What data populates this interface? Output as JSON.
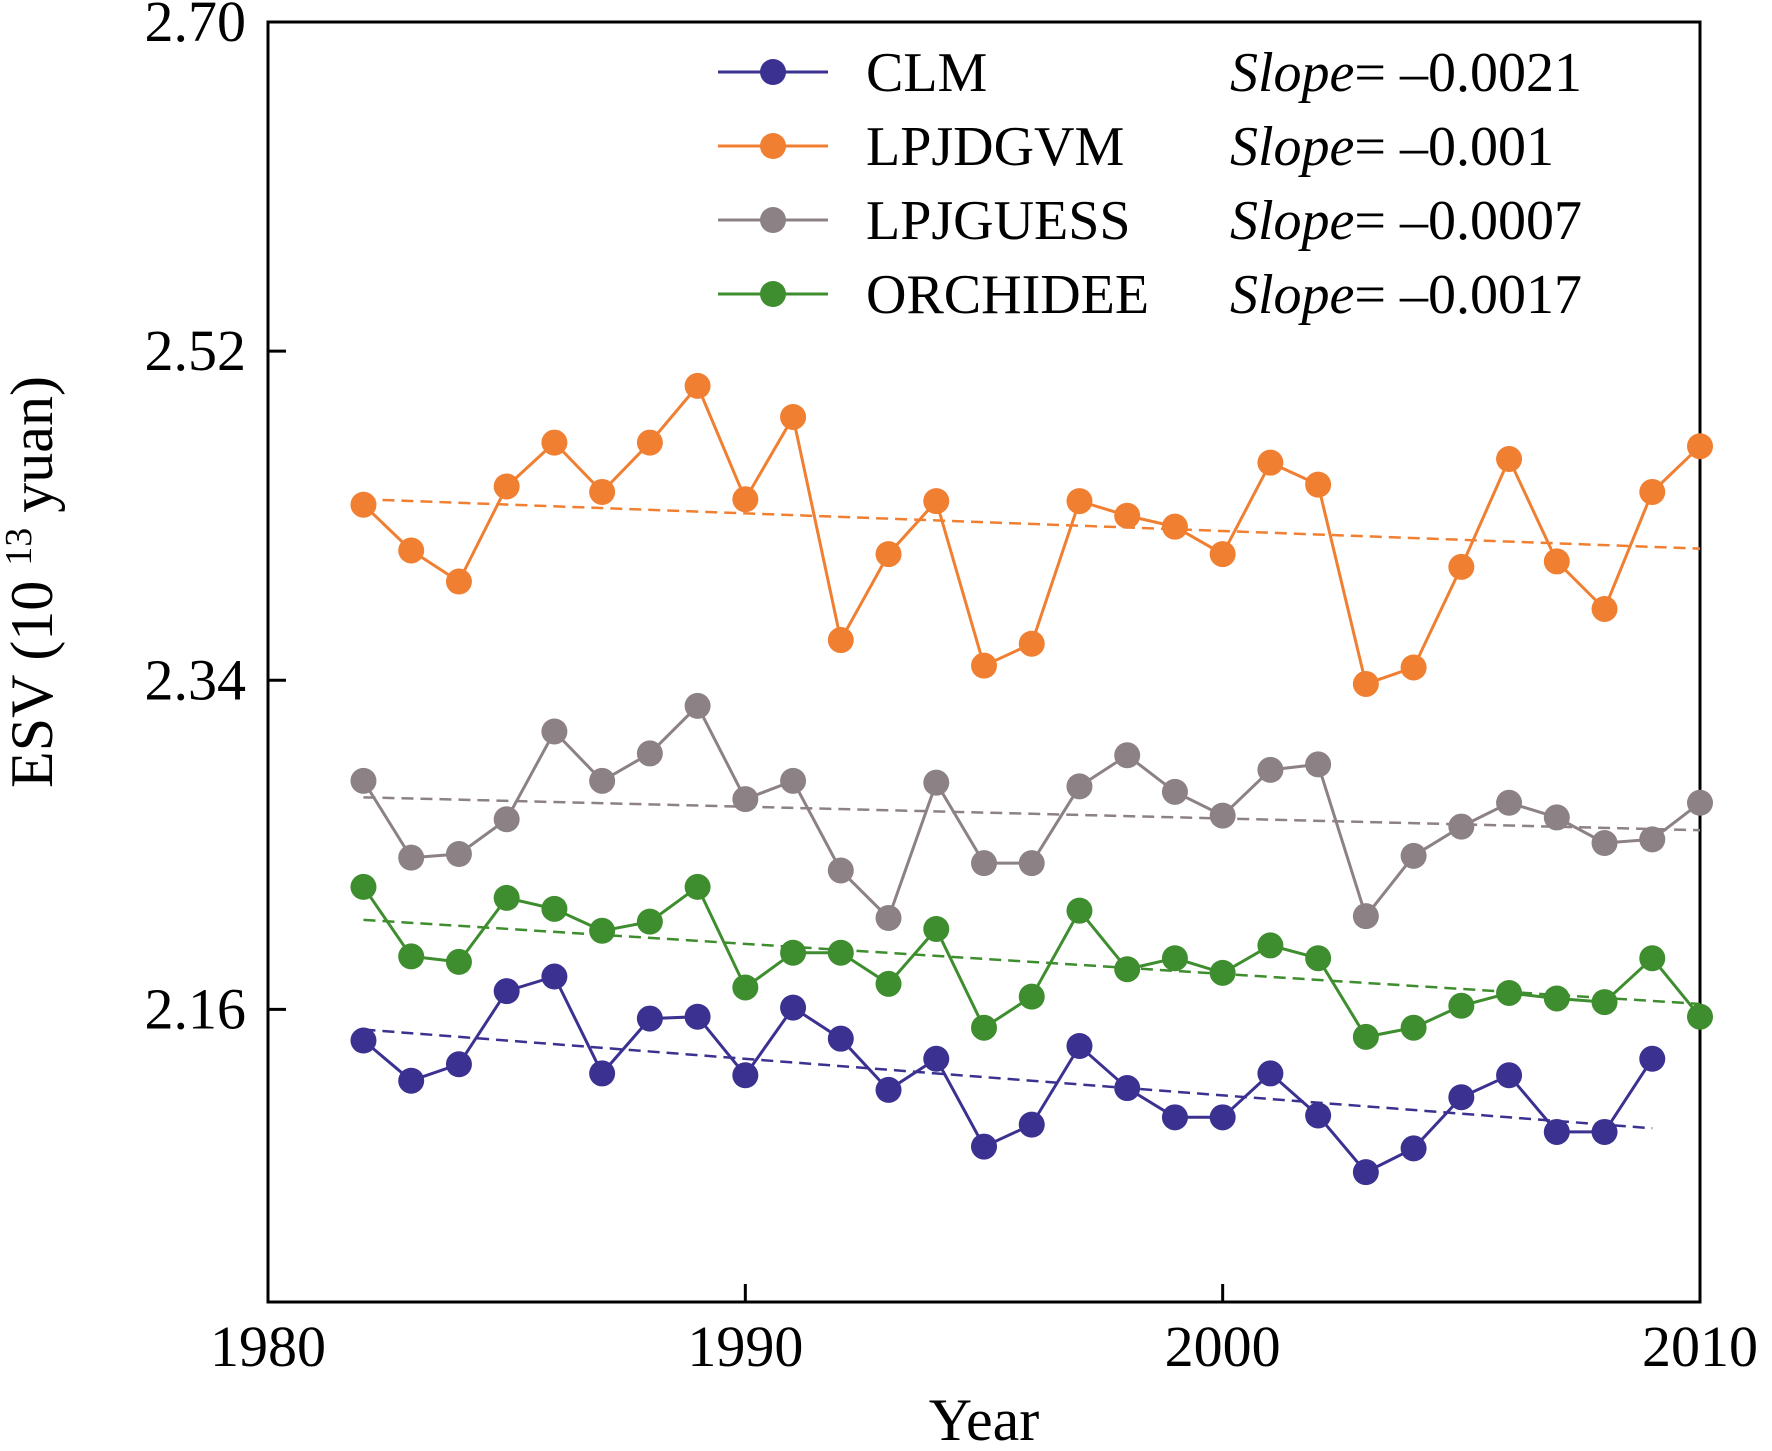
{
  "chart_data": {
    "type": "line",
    "xlabel": "Year",
    "ylabel_main": "ESV (10",
    "ylabel_sup": "13",
    "ylabel_tail": " yuan)",
    "xlim": [
      1980,
      2010
    ],
    "ylim": [
      2.0,
      2.7
    ],
    "xticks": [
      1980,
      1990,
      2000,
      2010
    ],
    "yticks": [
      2.16,
      2.34,
      2.52,
      2.7
    ],
    "ytick_labels": [
      "2.16",
      "2.34",
      "2.52",
      "2.70"
    ],
    "xtick_labels": [
      "1980",
      "1990",
      "2000",
      "2010"
    ],
    "legend_position": "top-right",
    "series": [
      {
        "name": "CLM",
        "slope_prefix": "Slope",
        "slope_text": "= –0.0021",
        "color": "#3b3191",
        "marker": "circle",
        "x": [
          1982,
          1983,
          1984,
          1985,
          1986,
          1987,
          1988,
          1989,
          1990,
          1991,
          1992,
          1993,
          1994,
          1995,
          1996,
          1997,
          1998,
          1999,
          2000,
          2001,
          2002,
          2003,
          2004,
          2005,
          2006,
          2007,
          2008,
          2009
        ],
        "values": [
          2.143,
          2.121,
          2.13,
          2.17,
          2.178,
          2.125,
          2.155,
          2.156,
          2.124,
          2.161,
          2.144,
          2.116,
          2.133,
          2.085,
          2.097,
          2.14,
          2.117,
          2.101,
          2.101,
          2.125,
          2.102,
          2.071,
          2.084,
          2.112,
          2.124,
          2.093,
          2.093,
          2.133
        ],
        "trend_x": [
          1982,
          2009
        ],
        "trend_y": [
          2.149,
          2.095
        ]
      },
      {
        "name": "LPJDGVM",
        "slope_prefix": "Slope",
        "slope_text": "= –0.001",
        "color": "#f07f31",
        "marker": "circle",
        "x": [
          1982,
          1983,
          1984,
          1985,
          1986,
          1987,
          1988,
          1989,
          1990,
          1991,
          1992,
          1993,
          1994,
          1995,
          1996,
          1997,
          1998,
          1999,
          2000,
          2001,
          2002,
          2003,
          2004,
          2005,
          2006,
          2007,
          2008,
          2009,
          2010
        ],
        "values": [
          2.436,
          2.411,
          2.394,
          2.446,
          2.47,
          2.443,
          2.47,
          2.501,
          2.439,
          2.484,
          2.362,
          2.409,
          2.438,
          2.348,
          2.36,
          2.438,
          2.43,
          2.424,
          2.409,
          2.459,
          2.447,
          2.338,
          2.347,
          2.402,
          2.461,
          2.405,
          2.379,
          2.443,
          2.468
        ],
        "trend_x": [
          1982,
          2010
        ],
        "trend_y": [
          2.439,
          2.412
        ]
      },
      {
        "name": "LPJGUESS",
        "slope_prefix": "Slope",
        "slope_text": "= –0.0007",
        "color": "#8c8184",
        "marker": "circle",
        "x": [
          1982,
          1983,
          1984,
          1985,
          1986,
          1987,
          1988,
          1989,
          1990,
          1991,
          1992,
          1993,
          1994,
          1995,
          1996,
          1997,
          1998,
          1999,
          2000,
          2001,
          2002,
          2003,
          2004,
          2005,
          2006,
          2007,
          2008,
          2009,
          2010
        ],
        "values": [
          2.285,
          2.243,
          2.245,
          2.264,
          2.312,
          2.285,
          2.3,
          2.326,
          2.275,
          2.285,
          2.236,
          2.21,
          2.284,
          2.24,
          2.24,
          2.282,
          2.299,
          2.279,
          2.266,
          2.291,
          2.294,
          2.211,
          2.244,
          2.26,
          2.273,
          2.265,
          2.251,
          2.253,
          2.273
        ],
        "trend_x": [
          1982,
          2010
        ],
        "trend_y": [
          2.276,
          2.258
        ]
      },
      {
        "name": "ORCHIDEE",
        "slope_prefix": "Slope",
        "slope_text": "= –0.0017",
        "color": "#3e8d2e",
        "marker": "circle",
        "x": [
          1982,
          1983,
          1984,
          1985,
          1986,
          1987,
          1988,
          1989,
          1990,
          1991,
          1992,
          1993,
          1994,
          1995,
          1996,
          1997,
          1998,
          1999,
          2000,
          2001,
          2002,
          2003,
          2004,
          2005,
          2006,
          2007,
          2008,
          2009,
          2010
        ],
        "values": [
          2.227,
          2.189,
          2.186,
          2.221,
          2.215,
          2.203,
          2.208,
          2.227,
          2.172,
          2.191,
          2.191,
          2.174,
          2.204,
          2.15,
          2.167,
          2.214,
          2.182,
          2.188,
          2.18,
          2.195,
          2.188,
          2.145,
          2.15,
          2.162,
          2.169,
          2.166,
          2.164,
          2.188,
          2.156
        ],
        "trend_x": [
          1982,
          2010
        ],
        "trend_y": [
          2.209,
          2.163
        ]
      }
    ]
  }
}
